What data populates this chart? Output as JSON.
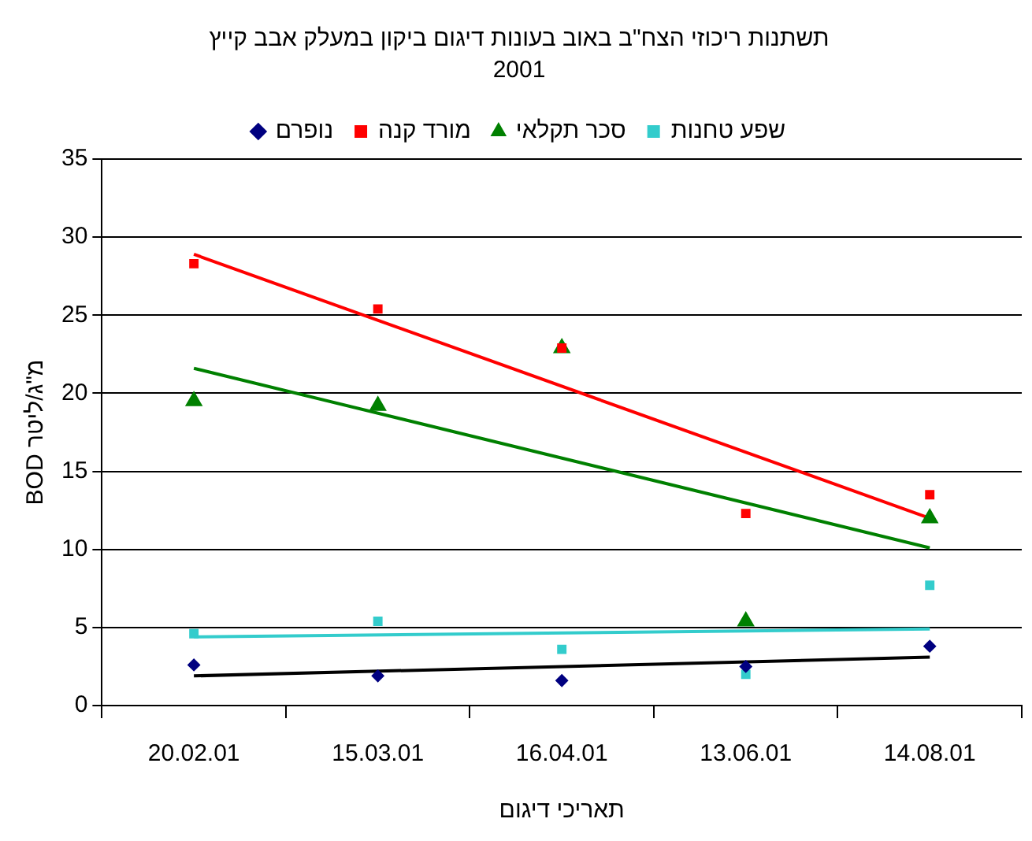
{
  "chart_data": {
    "type": "scatter",
    "title": "תשתנות ריכוזי הצח\"ב באוב בעונות דיגום ביקון במעלק אבב קייץ",
    "subtitle": "2001",
    "xlabel": "תאריכי דיגום",
    "ylabel": "BOD מ\"ג/ליטר",
    "categories": [
      "20.02.01",
      "15.03.01",
      "16.04.01",
      "13.06.01",
      "14.08.01"
    ],
    "series": [
      {
        "name": "נופרם",
        "color": "#000080",
        "marker": "diamond",
        "values": [
          2.6,
          1.9,
          1.6,
          2.5,
          3.8
        ]
      },
      {
        "name": "מורד קנה",
        "color": "#ff0000",
        "marker": "square",
        "values": [
          28.3,
          25.4,
          22.9,
          12.3,
          13.5
        ]
      },
      {
        "name": "סכר תקלאי",
        "color": "#008000",
        "marker": "triangle",
        "values": [
          19.5,
          19.2,
          22.9,
          5.4,
          12.0
        ]
      },
      {
        "name": "שפע טחנות",
        "color": "#33cccc",
        "marker": "square",
        "values": [
          4.6,
          5.4,
          3.6,
          2.0,
          7.7
        ]
      },
      {
        "type": "line",
        "color": "#000000",
        "marker": "none",
        "x": [
          "20.02.01",
          "14.08.01"
        ],
        "values": [
          1.9,
          3.1
        ]
      },
      {
        "type": "line",
        "color": "#ff0000",
        "marker": "none",
        "x": [
          "20.02.01",
          "14.08.01"
        ],
        "values": [
          28.9,
          12.0
        ]
      },
      {
        "type": "line",
        "color": "#008000",
        "marker": "none",
        "x": [
          "20.02.01",
          "14.08.01"
        ],
        "values": [
          21.6,
          10.1
        ]
      },
      {
        "type": "line",
        "color": "#33cccc",
        "marker": "none",
        "x": [
          "20.02.01",
          "14.08.01"
        ],
        "values": [
          4.4,
          4.9
        ]
      }
    ],
    "ylim": [
      0,
      35
    ],
    "yticks": [
      0,
      5,
      10,
      15,
      20,
      25,
      30,
      35
    ],
    "grid": "y",
    "legend": "top"
  }
}
